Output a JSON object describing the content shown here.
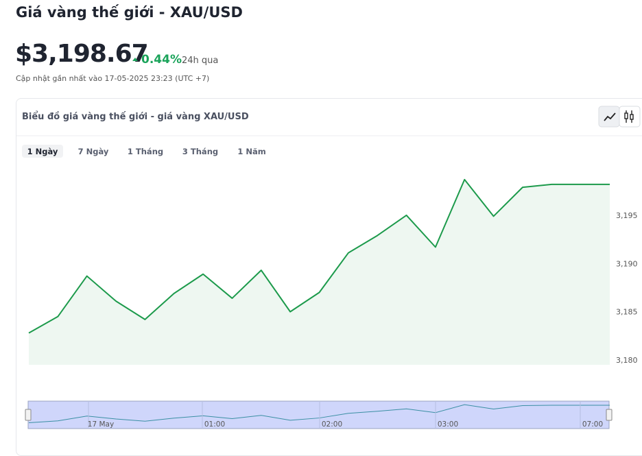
{
  "header": {
    "title": "Giá vàng thế giới - XAU/USD",
    "price": "$3,198.67",
    "change": "0.44%",
    "change_period": "24h qua",
    "updated": "Cập nhật gần nhất vào 17-05-2025 23:23 (UTC +7)"
  },
  "card": {
    "title": "Biểu đồ giá vàng thế giới - giá vàng XAU/USD",
    "tabs": [
      "1 Ngày",
      "7 Ngày",
      "1 Tháng",
      "3 Tháng",
      "1 Năm"
    ],
    "active_tab": 0
  },
  "chart_data": {
    "type": "area",
    "values": [
      3182.8,
      3184.5,
      3188.7,
      3186.1,
      3184.2,
      3186.9,
      3188.9,
      3186.4,
      3189.3,
      3185.0,
      3187.0,
      3191.1,
      3192.9,
      3195.0,
      3191.7,
      3198.7,
      3194.9,
      3197.9,
      3198.2,
      3198.2,
      3198.2
    ],
    "color": "#1c9a4b",
    "fill": "#eef7f1",
    "ylim": [
      3179.5,
      3200
    ],
    "yticks": [
      {
        "value": 3180,
        "label": "3,180"
      },
      {
        "value": 3185,
        "label": "3,185"
      },
      {
        "value": 3190,
        "label": "3,190"
      },
      {
        "value": 3195,
        "label": "3,195"
      }
    ]
  },
  "navigator": {
    "labels": [
      "17 May",
      "01:00",
      "02:00",
      "03:00",
      "07:00"
    ]
  }
}
